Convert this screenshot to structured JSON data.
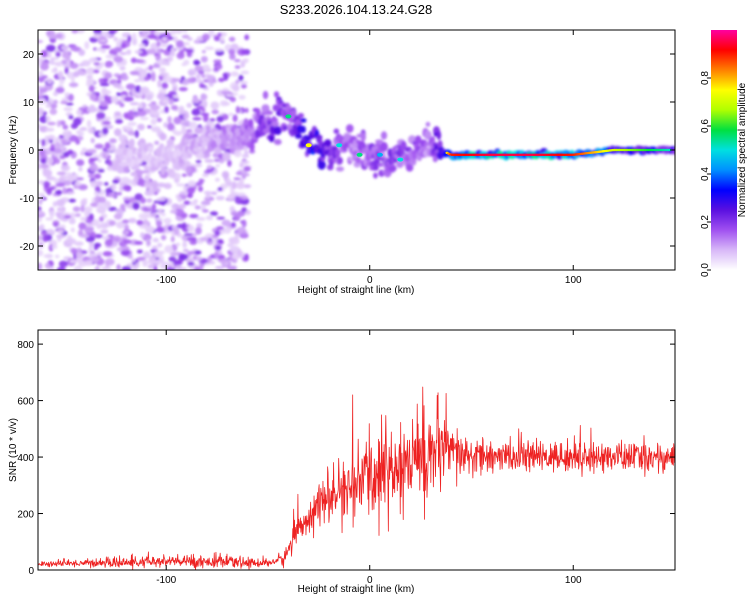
{
  "figure_title": "S233.2026.104.13.24.G28",
  "chart_data": [
    {
      "type": "heatmap",
      "title": "S233.2026.104.13.24.G28",
      "xlabel": "Height of straight line (km)",
      "ylabel": "Frequency (Hz)",
      "xlim": [
        -163,
        150
      ],
      "ylim": [
        -25,
        25
      ],
      "xticks": [
        -100,
        0,
        100
      ],
      "yticks": [
        -20,
        -10,
        0,
        10,
        20
      ],
      "xtick_labels": [
        "-100",
        "0",
        "100"
      ],
      "ytick_labels": [
        "-20",
        "-10",
        "0",
        "10",
        "20"
      ],
      "colorbar": {
        "label": "Normalized spectral amplitude",
        "range": [
          0.0,
          1.0
        ],
        "ticks": [
          0.0,
          0.2,
          0.4,
          0.6,
          0.8
        ],
        "tick_labels": [
          "0.0",
          "0.2",
          "0.4",
          "0.6",
          "0.8"
        ],
        "colormap": [
          "#ffffff",
          "#d8b8f8",
          "#a050f0",
          "#5a10e0",
          "#0000ff",
          "#0090ff",
          "#00e0e0",
          "#00e040",
          "#b0ff00",
          "#ffff00",
          "#ff8000",
          "#ff0000",
          "#ff00a0"
        ]
      },
      "ridge": {
        "description_x_km": [
          -120,
          -100,
          -80,
          -60,
          -45,
          -38,
          -28,
          -18,
          -10,
          0,
          10,
          20,
          30,
          40,
          60,
          80,
          100,
          120,
          150
        ],
        "frequency_hz": [
          -1,
          -2,
          2,
          3,
          7,
          6,
          1,
          -1,
          1,
          -1,
          -2,
          -1,
          1,
          -1,
          -1,
          -1,
          -1,
          0,
          0
        ],
        "amplitude": [
          0.15,
          0.15,
          0.2,
          0.3,
          0.45,
          0.4,
          0.6,
          0.4,
          0.3,
          0.35,
          0.4,
          0.35,
          0.3,
          0.9,
          0.95,
          0.95,
          0.9,
          0.7,
          0.5
        ]
      }
    },
    {
      "type": "line",
      "title": "",
      "xlabel": "Height of straight line (km)",
      "ylabel": "SNR (10 * v/v)",
      "xlim": [
        -163,
        150
      ],
      "ylim": [
        0,
        850
      ],
      "xticks": [
        -100,
        0,
        100
      ],
      "yticks": [
        0,
        200,
        400,
        600,
        800
      ],
      "xtick_labels": [
        "-100",
        "0",
        "100"
      ],
      "ytick_labels": [
        "0",
        "200",
        "400",
        "600",
        "800"
      ],
      "series": [
        {
          "name": "SNR",
          "color": "#ee2222",
          "x": [
            -163,
            -140,
            -120,
            -100,
            -80,
            -60,
            -50,
            -42,
            -35,
            -25,
            -15,
            -5,
            0,
            10,
            20,
            30,
            40,
            50,
            60,
            80,
            100,
            120,
            150
          ],
          "mean": [
            20,
            25,
            25,
            30,
            30,
            25,
            25,
            40,
            150,
            230,
            270,
            310,
            330,
            360,
            380,
            420,
            410,
            400,
            400,
            400,
            400,
            400,
            400
          ],
          "noise": [
            10,
            15,
            20,
            25,
            25,
            20,
            15,
            30,
            60,
            80,
            100,
            140,
            170,
            200,
            220,
            200,
            120,
            80,
            60,
            60,
            60,
            60,
            60
          ]
        }
      ]
    }
  ]
}
